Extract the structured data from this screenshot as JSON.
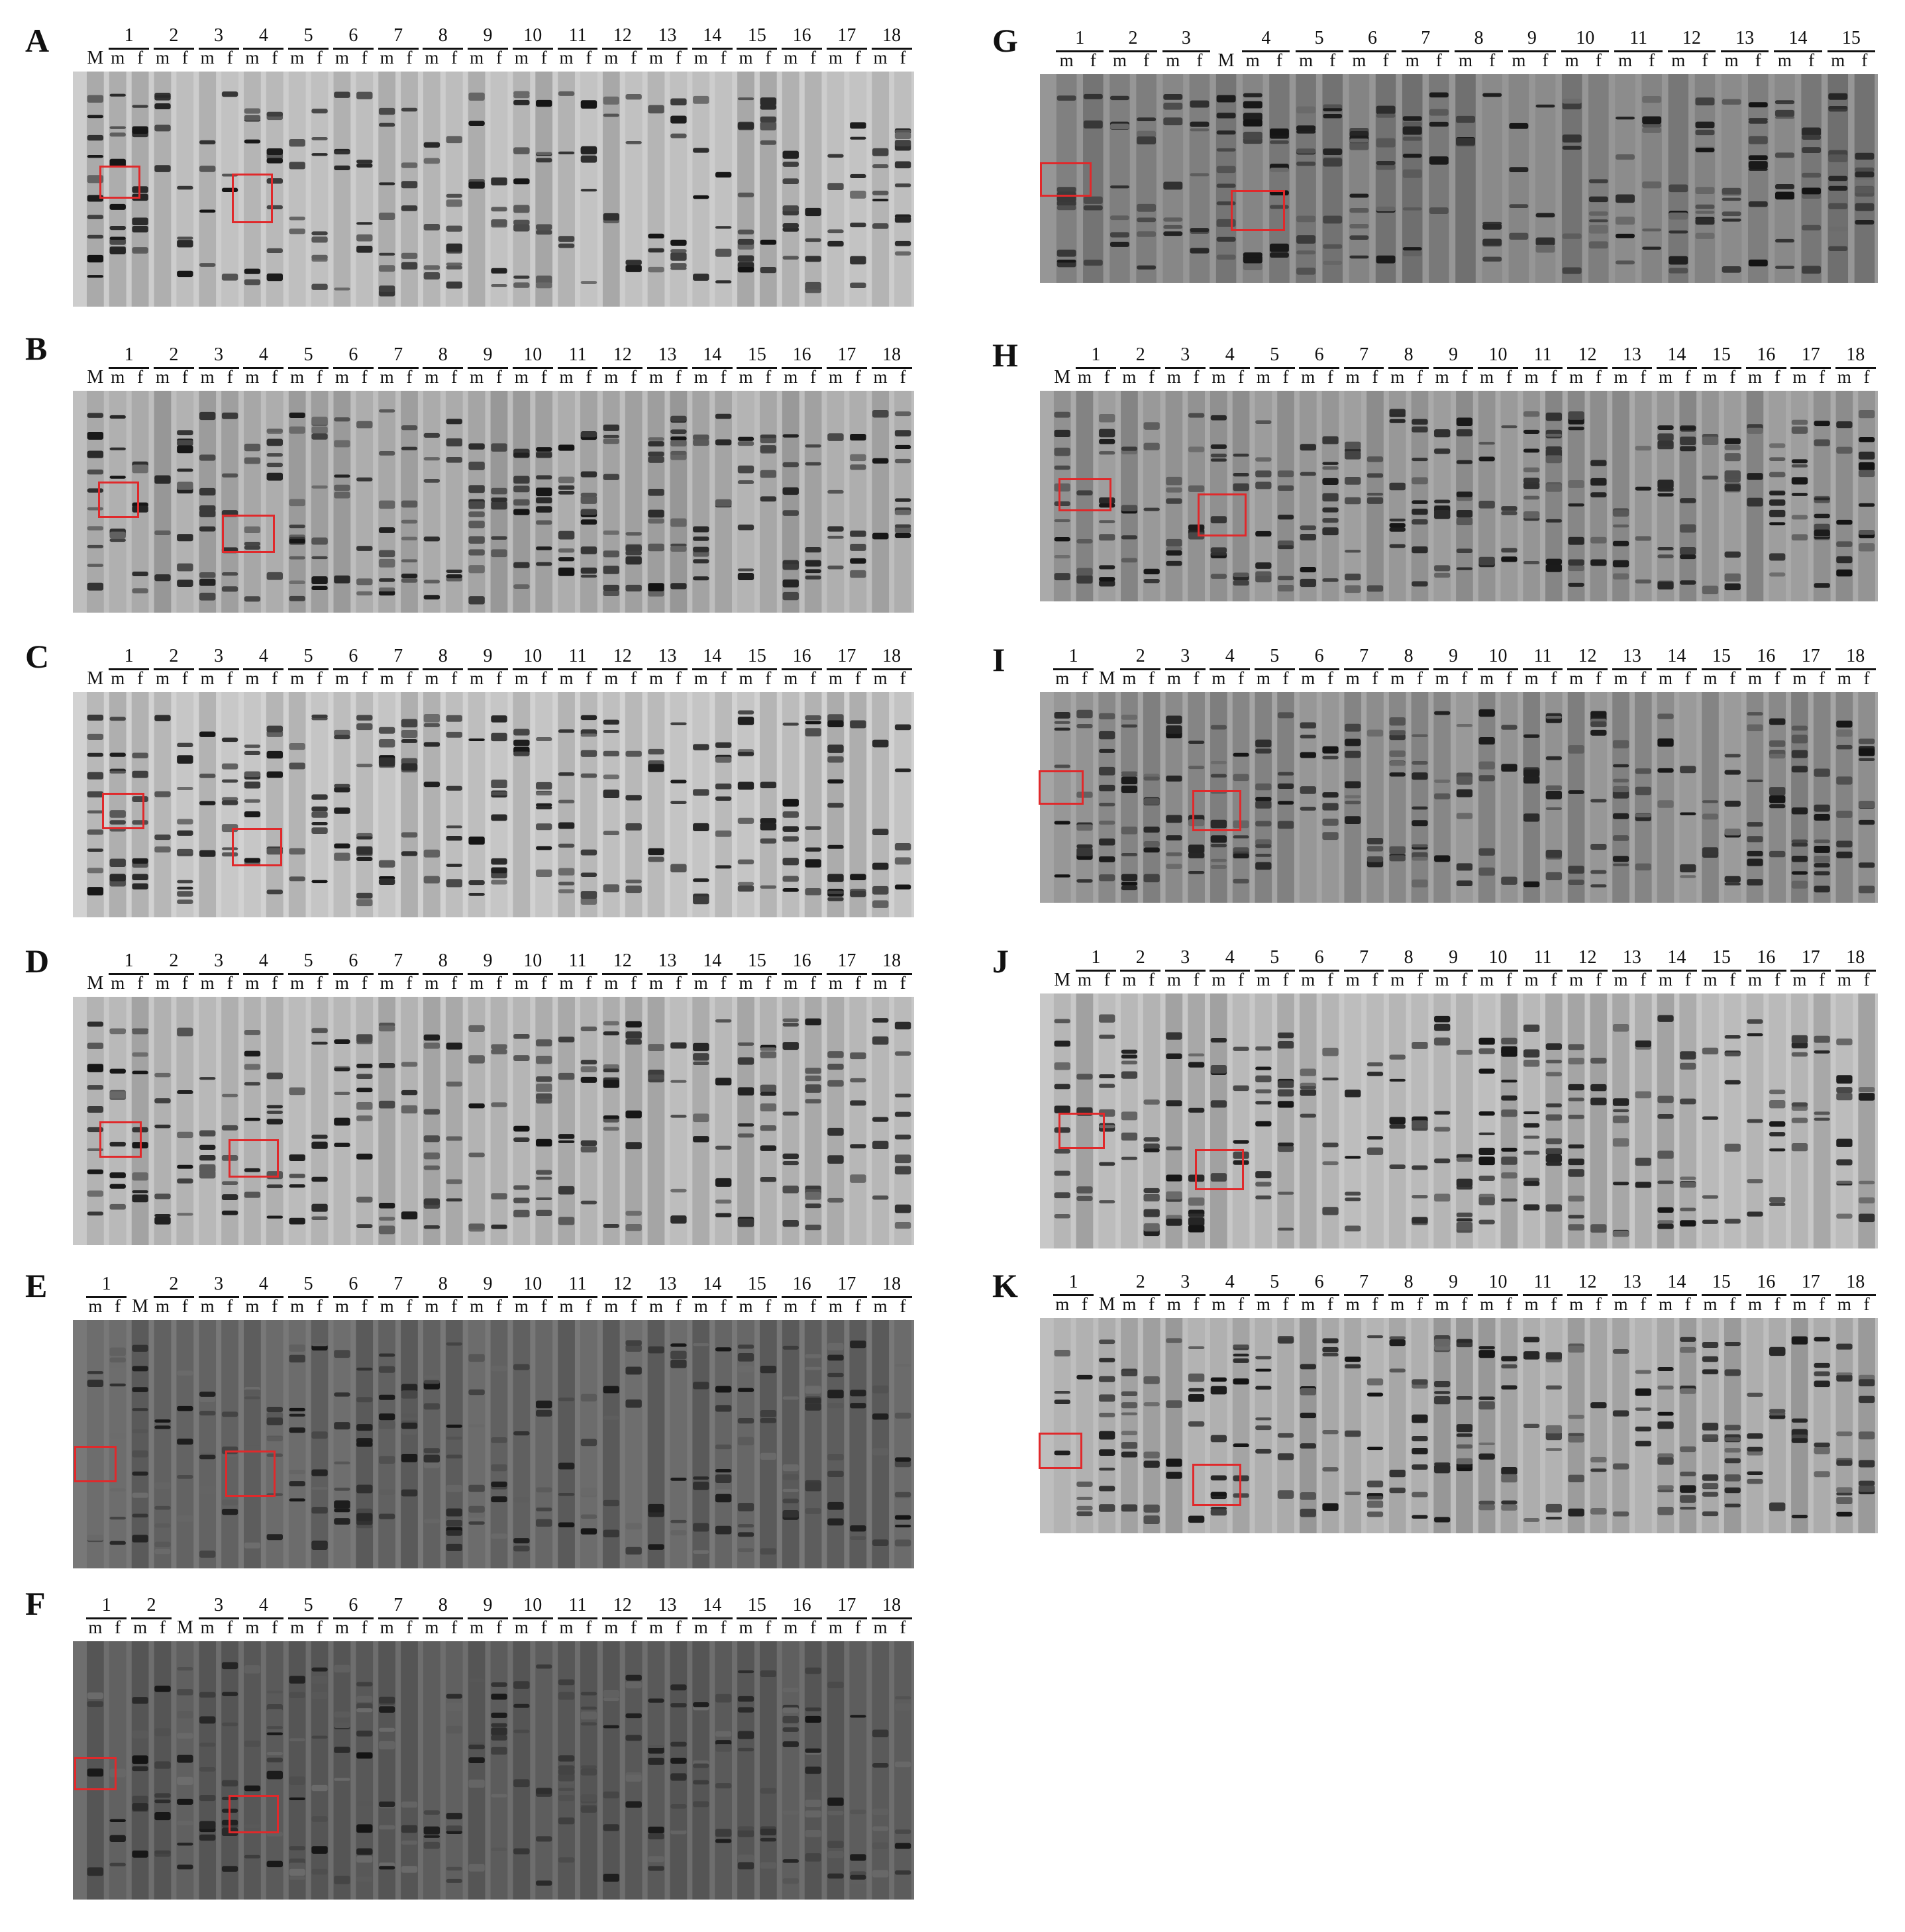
{
  "figure": {
    "panels": [
      {
        "letter": "A",
        "lanes": [
          "M",
          "1",
          "2",
          "3",
          "4",
          "5",
          "6",
          "7",
          "8",
          "9",
          "10",
          "11",
          "12",
          "13",
          "14",
          "15",
          "16",
          "17",
          "18"
        ],
        "sub": [
          "m",
          "f"
        ]
      },
      {
        "letter": "B",
        "lanes": [
          "M",
          "1",
          "2",
          "3",
          "4",
          "5",
          "6",
          "7",
          "8",
          "9",
          "10",
          "11",
          "12",
          "13",
          "14",
          "15",
          "16",
          "17",
          "18"
        ],
        "sub": [
          "m",
          "f"
        ]
      },
      {
        "letter": "C",
        "lanes": [
          "M",
          "1",
          "2",
          "3",
          "4",
          "5",
          "6",
          "7",
          "8",
          "9",
          "10",
          "11",
          "12",
          "13",
          "14",
          "15",
          "16",
          "17",
          "18"
        ],
        "sub": [
          "m",
          "f"
        ]
      },
      {
        "letter": "D",
        "lanes": [
          "M",
          "1",
          "2",
          "3",
          "4",
          "5",
          "6",
          "7",
          "8",
          "9",
          "10",
          "11",
          "12",
          "13",
          "14",
          "15",
          "16",
          "17",
          "18"
        ],
        "sub": [
          "m",
          "f"
        ]
      },
      {
        "letter": "E",
        "lanes": [
          "1",
          "M",
          "2",
          "3",
          "4",
          "5",
          "6",
          "7",
          "8",
          "9",
          "10",
          "11",
          "12",
          "13",
          "14",
          "15",
          "16",
          "17",
          "18"
        ],
        "sub": [
          "m",
          "f"
        ]
      },
      {
        "letter": "F",
        "lanes": [
          "1",
          "2",
          "M",
          "3",
          "4",
          "5",
          "6",
          "7",
          "8",
          "9",
          "10",
          "11",
          "12",
          "13",
          "14",
          "15",
          "16",
          "17",
          "18"
        ],
        "sub": [
          "m",
          "f"
        ]
      },
      {
        "letter": "G",
        "lanes": [
          "1",
          "2",
          "3",
          "M",
          "4",
          "5",
          "6",
          "7",
          "8",
          "9",
          "10",
          "11",
          "12",
          "13",
          "14",
          "15"
        ],
        "sub": [
          "m",
          "f"
        ]
      },
      {
        "letter": "H",
        "lanes": [
          "M",
          "1",
          "2",
          "3",
          "4",
          "5",
          "6",
          "7",
          "8",
          "9",
          "10",
          "11",
          "12",
          "13",
          "14",
          "15",
          "16",
          "17",
          "18"
        ],
        "sub": [
          "m",
          "f"
        ]
      },
      {
        "letter": "I",
        "lanes": [
          "1",
          "M",
          "2",
          "3",
          "4",
          "5",
          "6",
          "7",
          "8",
          "9",
          "10",
          "11",
          "12",
          "13",
          "14",
          "15",
          "16",
          "17",
          "18"
        ],
        "sub": [
          "m",
          "f"
        ]
      },
      {
        "letter": "J",
        "lanes": [
          "M",
          "1",
          "2",
          "3",
          "4",
          "5",
          "6",
          "7",
          "8",
          "9",
          "10",
          "11",
          "12",
          "13",
          "14",
          "15",
          "16",
          "17",
          "18"
        ],
        "sub": [
          "m",
          "f"
        ]
      },
      {
        "letter": "K",
        "lanes": [
          "1",
          "M",
          "2",
          "3",
          "4",
          "5",
          "6",
          "7",
          "8",
          "9",
          "10",
          "11",
          "12",
          "13",
          "14",
          "15",
          "16",
          "17",
          "18"
        ],
        "sub": [
          "m",
          "f"
        ]
      }
    ],
    "colors": {
      "highlight": "#e0292b",
      "gel_dark": "#2a2a2a",
      "gel_light": "#d9d9d9"
    }
  }
}
